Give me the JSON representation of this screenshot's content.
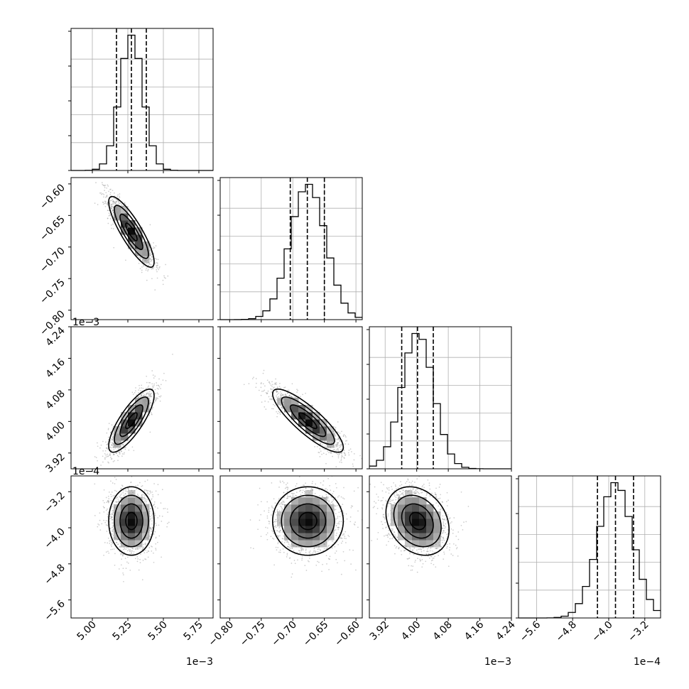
{
  "chart_data": {
    "type": "corner",
    "params": [
      {
        "range": [
          4.85,
          5.85
        ],
        "ticks": [
          5.0,
          5.25,
          5.5,
          5.75
        ],
        "tick_labels": [
          "5.00",
          "5.25",
          "5.50",
          "5.75"
        ],
        "offset_label": "1e−3",
        "mean": 5.275,
        "std": 0.08,
        "quantiles": [
          5.17,
          5.275,
          5.38
        ]
      },
      {
        "range": [
          -0.815,
          -0.59
        ],
        "ticks": [
          -0.8,
          -0.75,
          -0.7,
          -0.65,
          -0.6
        ],
        "tick_labels": [
          "−0.80",
          "−0.75",
          "−0.70",
          "−0.65",
          "−0.60"
        ],
        "offset_label": "",
        "mean": -0.676,
        "std": 0.028,
        "quantiles": [
          -0.704,
          -0.677,
          -0.65
        ]
      },
      {
        "range": [
          3.88,
          4.24
        ],
        "ticks": [
          3.92,
          4.0,
          4.08,
          4.16,
          4.24
        ],
        "tick_labels": [
          "3.92",
          "4.00",
          "4.08",
          "4.16",
          "4.24"
        ],
        "offset_label": "1e−3",
        "mean": 4.002,
        "std": 0.04,
        "quantiles": [
          3.962,
          4.002,
          4.042
        ]
      },
      {
        "range": [
          -6.0,
          -2.85
        ],
        "ticks": [
          -5.6,
          -4.8,
          -4.0,
          -3.2
        ],
        "tick_labels": [
          "−5.6",
          "−4.8",
          "−4.0",
          "−3.2"
        ],
        "offset_label": "1e−4",
        "mean": -3.85,
        "std": 0.38,
        "quantiles": [
          -4.25,
          -3.85,
          -3.45
        ]
      }
    ],
    "correlations": [
      [
        1.0,
        -0.85,
        0.8,
        0.0
      ],
      [
        -0.85,
        1.0,
        -0.85,
        0.0
      ],
      [
        0.8,
        -0.85,
        1.0,
        -0.25
      ],
      [
        0.0,
        0.0,
        -0.25,
        1.0
      ]
    ],
    "grid": true,
    "colors": {
      "axis": "#000000",
      "grid": "#b0b0b0",
      "scatter": "#9a9a9a",
      "contour": "#000000"
    }
  }
}
